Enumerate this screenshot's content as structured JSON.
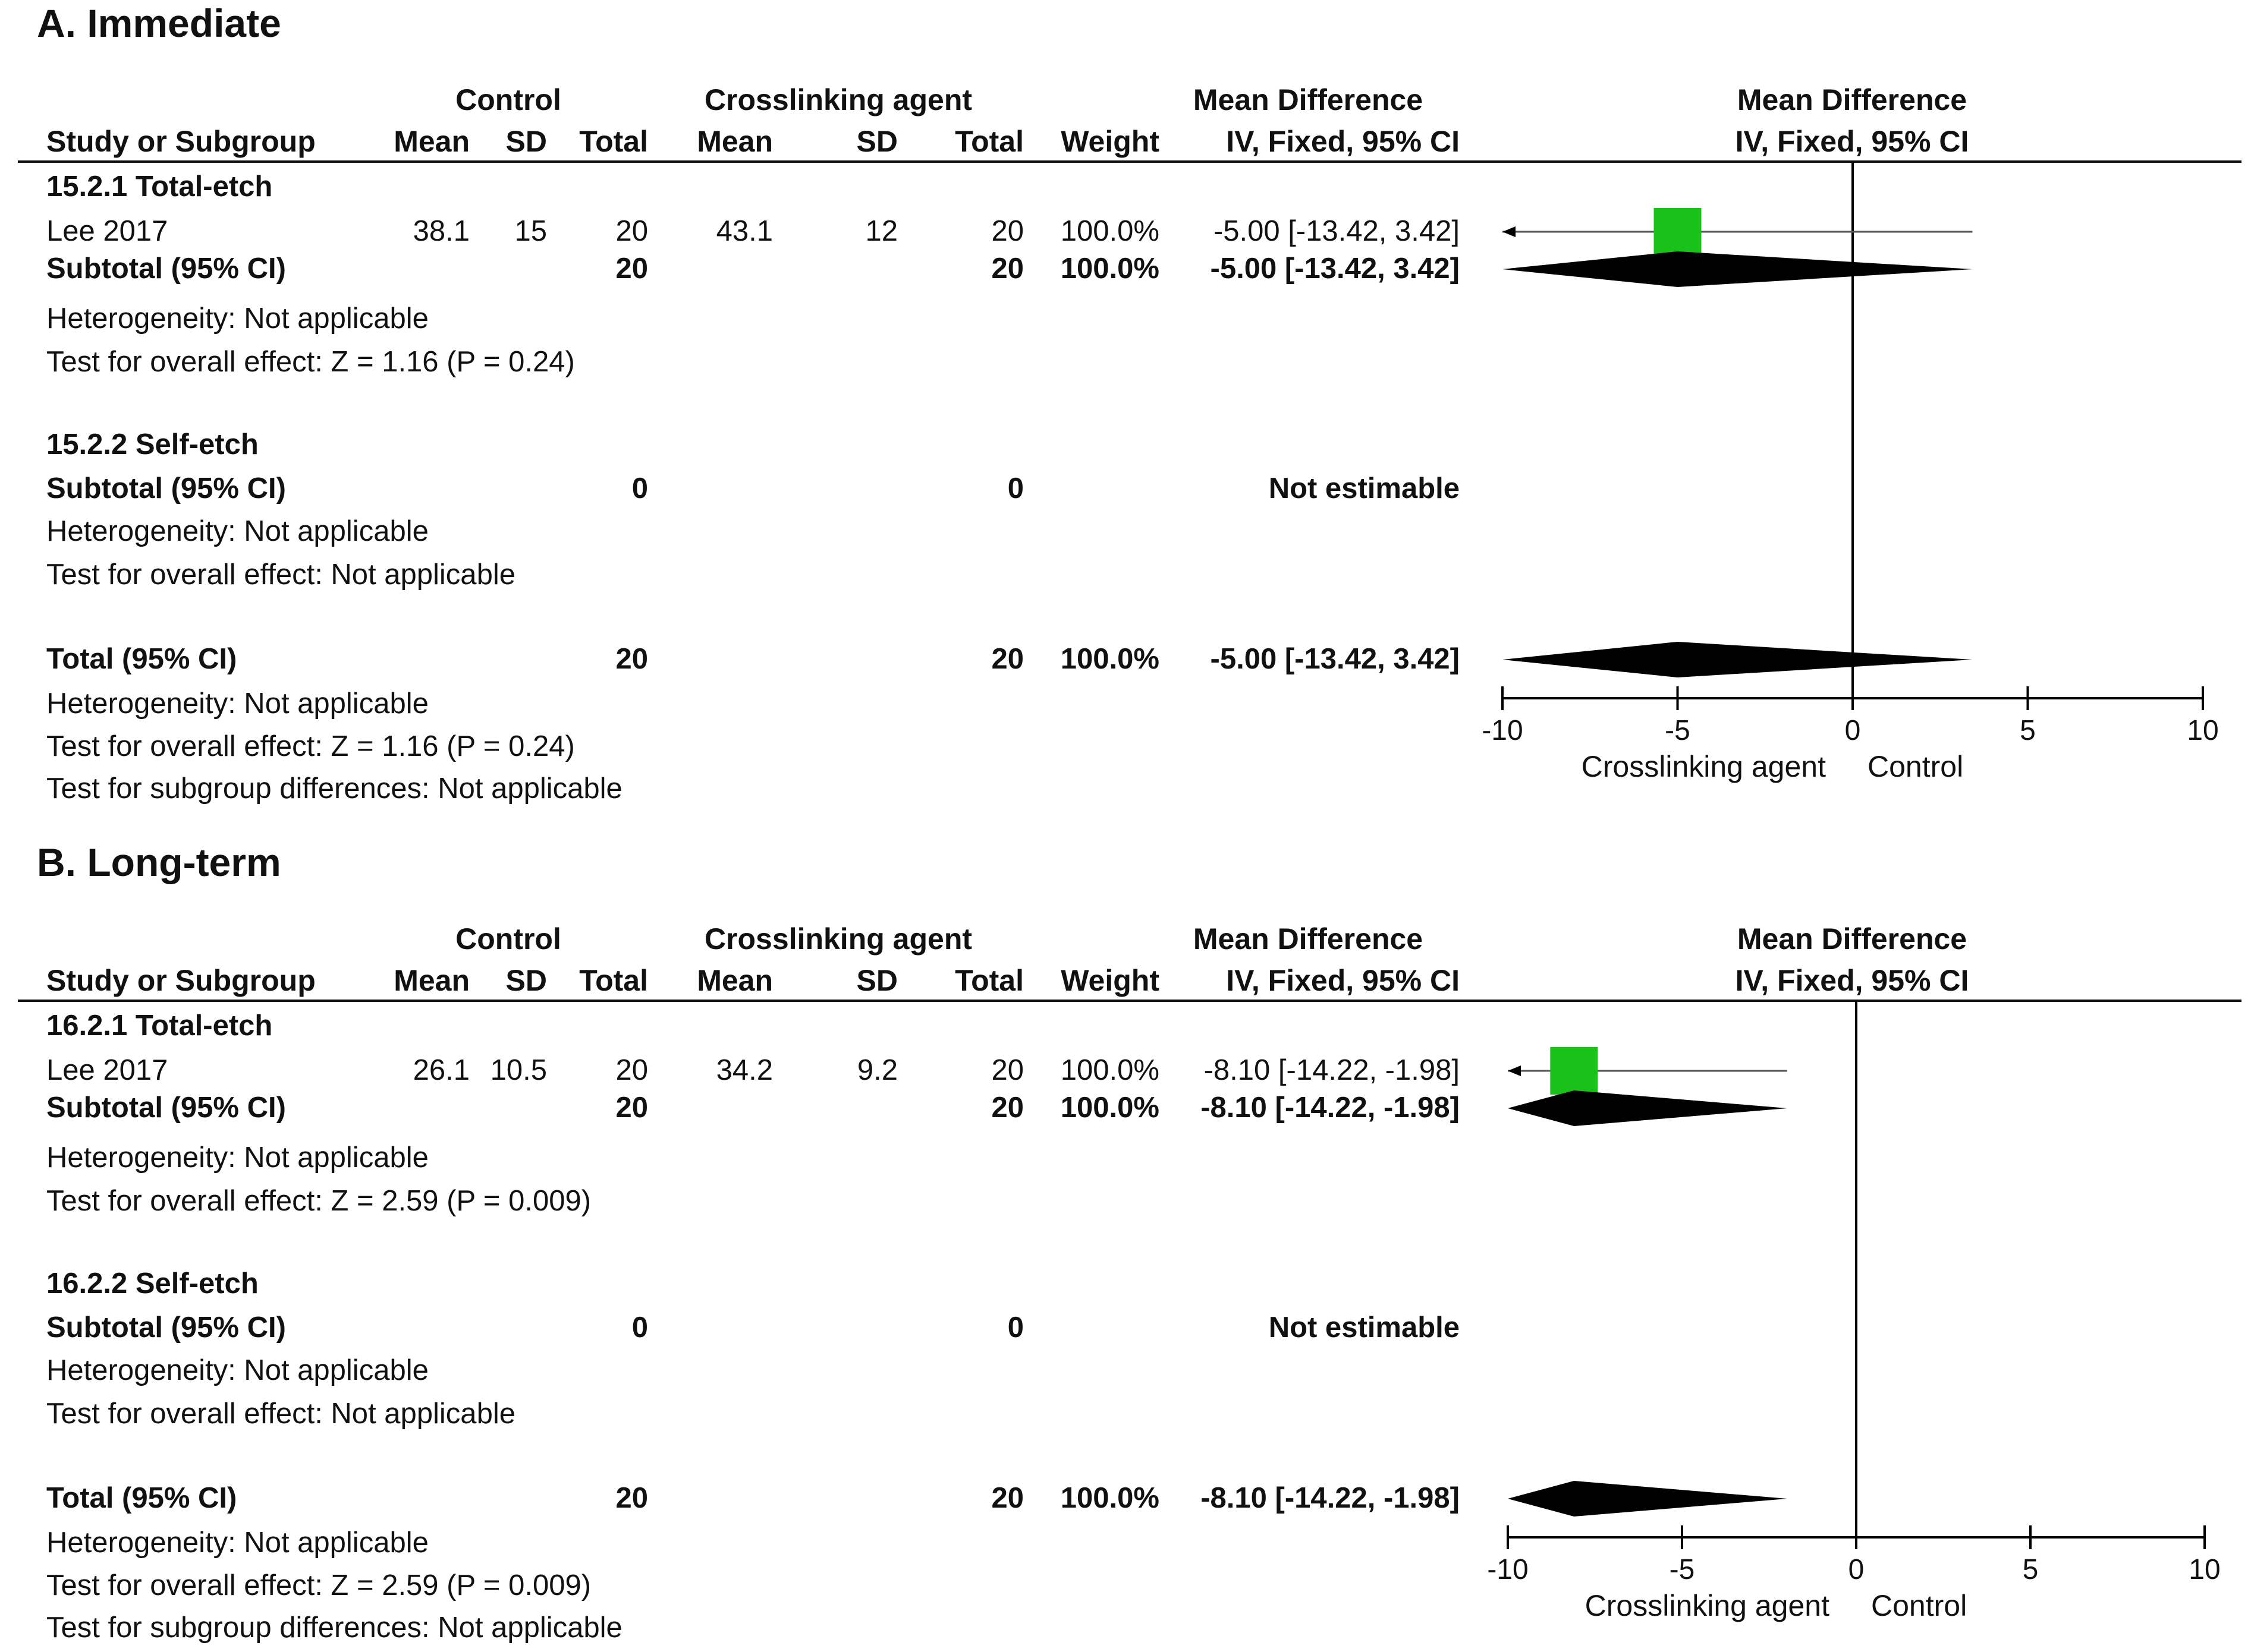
{
  "colors": {
    "point": "#19c219",
    "diamond": "#000000",
    "axis": "#000000",
    "ci_line": "#555555",
    "divider": "#111111"
  },
  "icons": {
    "point_marker": "square-marker",
    "pooled_marker": "diamond-marker",
    "truncation": "left-arrow"
  },
  "headers": {
    "group_control": "Control",
    "group_treatment": "Crosslinking agent",
    "group_md": "Mean Difference",
    "group_plot": "Mean Difference",
    "study": "Study or Subgroup",
    "mean": "Mean",
    "sd": "SD",
    "total": "Total",
    "weight": "Weight",
    "md_method": "IV, Fixed, 95% CI",
    "plot_method": "IV, Fixed, 95% CI"
  },
  "chart_data": [
    {
      "type": "forest",
      "title": "A. Immediate",
      "x_ticks": [
        "-10",
        "-5",
        "0",
        "5",
        "10"
      ],
      "xlim": [
        -10,
        10
      ],
      "favors_left": "Crosslinking agent",
      "favors_right": "Control",
      "subgroups": [
        {
          "label": "15.2.1 Total-etch",
          "studies": [
            {
              "name": "Lee 2017",
              "c_mean": "38.1",
              "c_sd": "15",
              "c_total": "20",
              "t_mean": "43.1",
              "t_sd": "12",
              "t_total": "20",
              "weight": "100.0%",
              "ci_text": "-5.00 [-13.42, 3.42]",
              "md": -5.0,
              "lo": -13.42,
              "hi": 3.42
            }
          ],
          "subtotal": {
            "label": "Subtotal (95% CI)",
            "c_total": "20",
            "t_total": "20",
            "weight": "100.0%",
            "ci_text": "-5.00 [-13.42, 3.42]",
            "md": -5.0,
            "lo": -13.42,
            "hi": 3.42
          },
          "heterogeneity": "Heterogeneity: Not applicable",
          "overall": "Test for overall effect: Z = 1.16 (P = 0.24)"
        },
        {
          "label": "15.2.2 Self-etch",
          "studies": [],
          "subtotal": {
            "label": "Subtotal (95% CI)",
            "c_total": "0",
            "t_total": "0",
            "weight": "",
            "ci_text": "Not estimable",
            "md": null,
            "lo": null,
            "hi": null
          },
          "heterogeneity": "Heterogeneity: Not applicable",
          "overall": "Test for overall effect: Not applicable"
        }
      ],
      "total": {
        "label": "Total (95% CI)",
        "c_total": "20",
        "t_total": "20",
        "weight": "100.0%",
        "ci_text": "-5.00 [-13.42, 3.42]",
        "md": -5.0,
        "lo": -13.42,
        "hi": 3.42,
        "heterogeneity": "Heterogeneity: Not applicable",
        "overall": "Test for overall effect: Z = 1.16 (P = 0.24)",
        "subgroup_diff": "Test for subgroup differences: Not applicable"
      }
    },
    {
      "type": "forest",
      "title": "B. Long-term",
      "x_ticks": [
        "-10",
        "-5",
        "0",
        "5",
        "10"
      ],
      "xlim": [
        -10,
        10
      ],
      "favors_left": "Crosslinking agent",
      "favors_right": "Control",
      "subgroups": [
        {
          "label": "16.2.1 Total-etch",
          "studies": [
            {
              "name": "Lee 2017",
              "c_mean": "26.1",
              "c_sd": "10.5",
              "c_total": "20",
              "t_mean": "34.2",
              "t_sd": "9.2",
              "t_total": "20",
              "weight": "100.0%",
              "ci_text": "-8.10 [-14.22, -1.98]",
              "md": -8.1,
              "lo": -14.22,
              "hi": -1.98
            }
          ],
          "subtotal": {
            "label": "Subtotal (95% CI)",
            "c_total": "20",
            "t_total": "20",
            "weight": "100.0%",
            "ci_text": "-8.10 [-14.22, -1.98]",
            "md": -8.1,
            "lo": -14.22,
            "hi": -1.98
          },
          "heterogeneity": "Heterogeneity: Not applicable",
          "overall": "Test for overall effect: Z = 2.59 (P = 0.009)"
        },
        {
          "label": "16.2.2 Self-etch",
          "studies": [],
          "subtotal": {
            "label": "Subtotal (95% CI)",
            "c_total": "0",
            "t_total": "0",
            "weight": "",
            "ci_text": "Not estimable",
            "md": null,
            "lo": null,
            "hi": null
          },
          "heterogeneity": "Heterogeneity: Not applicable",
          "overall": "Test for overall effect: Not applicable"
        }
      ],
      "total": {
        "label": "Total (95% CI)",
        "c_total": "20",
        "t_total": "20",
        "weight": "100.0%",
        "ci_text": "-8.10 [-14.22, -1.98]",
        "md": -8.1,
        "lo": -14.22,
        "hi": -1.98,
        "heterogeneity": "Heterogeneity: Not applicable",
        "overall": "Test for overall effect: Z = 2.59 (P = 0.009)",
        "subgroup_diff": "Test for subgroup differences: Not applicable"
      }
    }
  ]
}
